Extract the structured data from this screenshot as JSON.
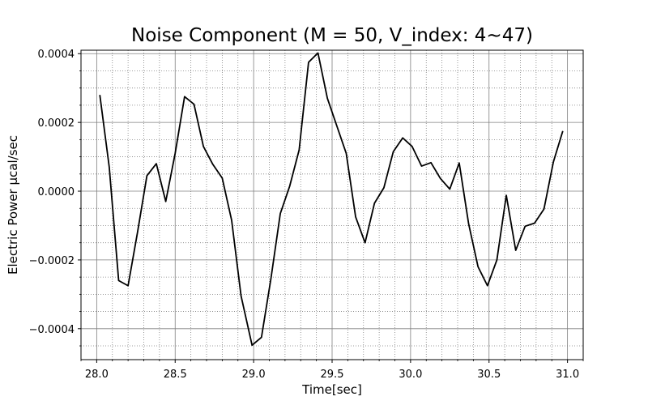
{
  "chart_data": {
    "type": "line",
    "title": "Noise Component (M = 50, V_index: 4~47)",
    "xlabel": "Time[sec]",
    "ylabel": "Electric Power µcal/sec",
    "xlim": [
      27.9,
      31.1
    ],
    "ylim": [
      -0.00049,
      0.00041
    ],
    "xticks": [
      28.0,
      28.5,
      29.0,
      29.5,
      30.0,
      30.5,
      31.0
    ],
    "xtick_labels": [
      "28.0",
      "28.5",
      "29.0",
      "29.5",
      "30.0",
      "30.5",
      "31.0"
    ],
    "xminor_step": 0.1,
    "yticks": [
      -0.0004,
      -0.0002,
      0.0,
      0.0002,
      0.0004
    ],
    "ytick_labels": [
      "−0.0004",
      "−0.0002",
      "0.0000",
      "0.0002",
      "0.0004"
    ],
    "yminor_step": 5e-05,
    "grid": true,
    "line_color": "#000000",
    "series": [
      {
        "x": [
          28.02,
          28.08,
          28.14,
          28.2,
          28.26,
          28.32,
          28.38,
          28.44,
          28.5,
          28.56,
          28.62,
          28.68,
          28.74,
          28.8,
          28.86,
          28.92,
          28.99,
          29.05,
          29.11,
          29.17,
          29.23,
          29.29,
          29.35,
          29.41,
          29.47,
          29.53,
          29.59,
          29.65,
          29.71,
          29.77,
          29.83,
          29.89,
          29.95,
          30.01,
          30.07,
          30.13,
          30.19,
          30.25,
          30.31,
          30.37,
          30.43,
          30.49,
          30.55,
          30.61,
          30.67,
          30.73,
          30.79,
          30.85,
          30.91,
          30.97
        ],
        "y": [
          0.00028,
          7e-05,
          -0.00026,
          -0.000275,
          -0.00012,
          4.5e-05,
          8e-05,
          -3e-05,
          0.00011,
          0.000275,
          0.000253,
          0.00013,
          7.8e-05,
          3.8e-05,
          -8.5e-05,
          -0.000305,
          -0.000448,
          -0.000425,
          -0.000255,
          -6.5e-05,
          1.5e-05,
          0.00012,
          0.000375,
          0.000402,
          0.00027,
          0.00019,
          0.00011,
          -7.5e-05,
          -0.00015,
          -3.5e-05,
          1e-05,
          0.000115,
          0.000155,
          0.00013,
          7.3e-05,
          8.3e-05,
          3.7e-05,
          6e-06,
          8.2e-05,
          -9.5e-05,
          -0.00022,
          -0.000275,
          -0.0002,
          -1.2e-05,
          -0.000172,
          -0.000102,
          -9.3e-05,
          -5.2e-05,
          8.5e-05,
          0.000175
        ]
      }
    ]
  }
}
